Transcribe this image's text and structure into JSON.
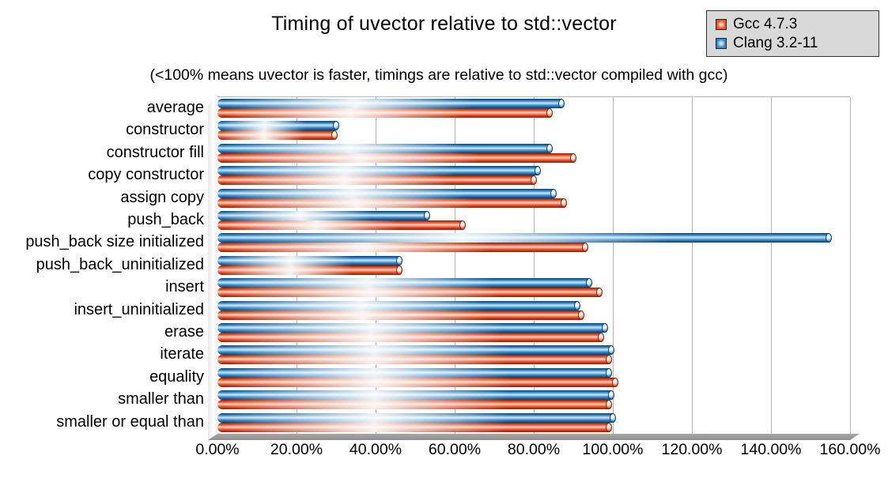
{
  "header": {
    "title": "Timing of uvector relative to std::vector",
    "subtitle": "(<100% means uvector is faster, timings are relative to std::vector compiled with gcc)"
  },
  "legend": {
    "items": [
      {
        "label": "Gcc 4.7.3",
        "colors": {
          "main": "#ee4f26",
          "light": "#ffd2c2",
          "dark": "#7e2208"
        }
      },
      {
        "label": "Clang 3.2-11",
        "colors": {
          "main": "#2f88cc",
          "light": "#cfe8f8",
          "dark": "#0d3d6b"
        }
      }
    ]
  },
  "chart_data": {
    "type": "bar",
    "orientation": "horizontal",
    "title": "Timing of uvector relative to std::vector",
    "subtitle": "(<100% means uvector is faster, timings are relative to std::vector compiled with gcc)",
    "categories": [
      "average",
      "constructor",
      "constructor fill",
      "copy constructor",
      "assign copy",
      "push_back",
      "push_back size initialized",
      "push_back_uninitialized",
      "insert",
      "insert_uninitialized",
      "erase",
      "iterate",
      "equality",
      "smaller than",
      "smaller or equal than"
    ],
    "series": [
      {
        "name": "Gcc 4.7.3",
        "colors": {
          "main": "#ee4f26",
          "light": "#ffd2c2",
          "dark": "#7e2208"
        },
        "values": [
          84,
          29.5,
          90,
          80,
          87.5,
          62,
          93,
          46,
          96.5,
          92,
          97,
          99,
          100.5,
          99,
          99
        ]
      },
      {
        "name": "Clang 3.2-11",
        "colors": {
          "main": "#2f88cc",
          "light": "#cfe8f8",
          "dark": "#0d3d6b"
        },
        "values": [
          87,
          30,
          84,
          81,
          85,
          53,
          154.5,
          46,
          94,
          91,
          98,
          99.5,
          99,
          99.5,
          100
        ]
      }
    ],
    "xlabel": "",
    "ylabel": "",
    "xlim": [
      0,
      160
    ],
    "x_tick_labels": [
      "0.00%",
      "20.00%",
      "40.00%",
      "60.00%",
      "80.00%",
      "100.00%",
      "120.00%",
      "140.00%",
      "160.00%"
    ],
    "grid": "vertical",
    "legend_position": "top-right",
    "units": "percent"
  }
}
